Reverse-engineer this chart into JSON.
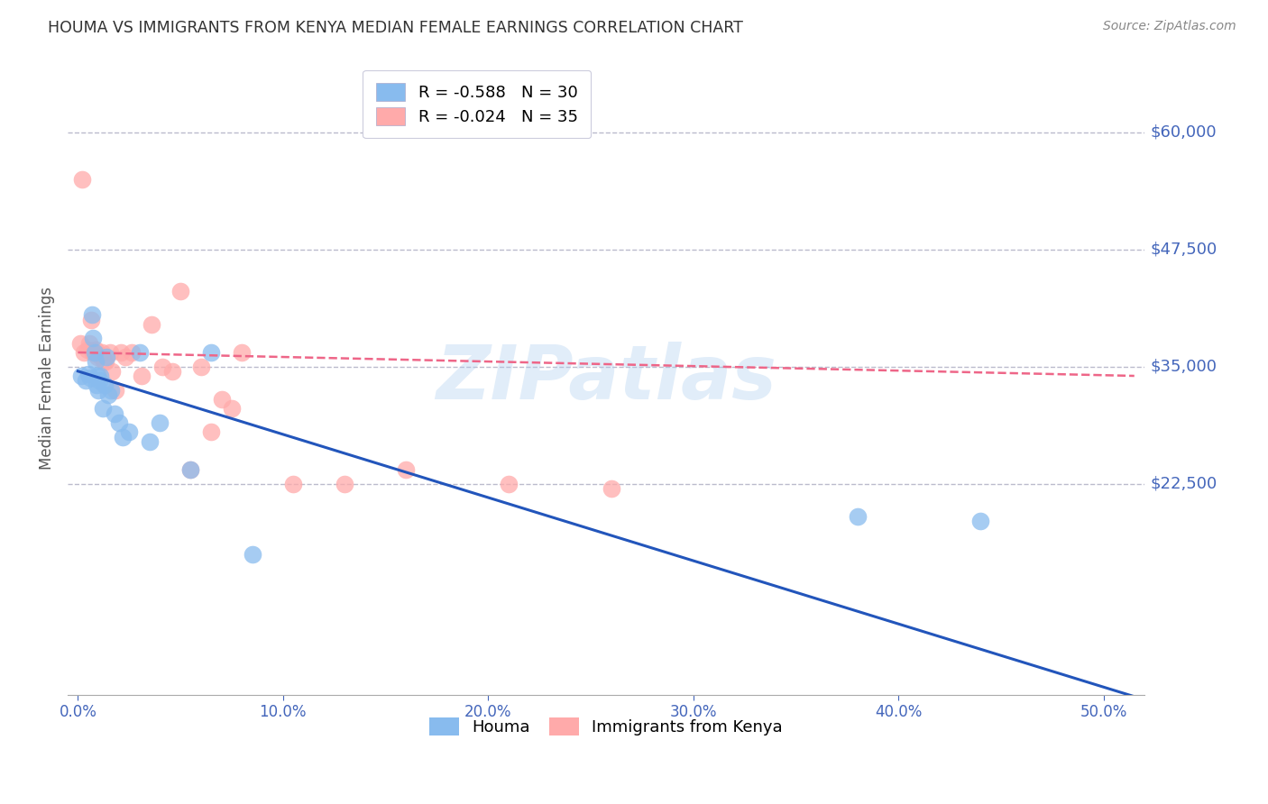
{
  "title": "HOUMA VS IMMIGRANTS FROM KENYA MEDIAN FEMALE EARNINGS CORRELATION CHART",
  "source": "Source: ZipAtlas.com",
  "xlabel_vals": [
    0.0,
    10.0,
    20.0,
    30.0,
    40.0,
    50.0
  ],
  "ylabel": "Median Female Earnings",
  "ytick_labels_right": [
    22500,
    35000,
    47500,
    60000
  ],
  "ylim": [
    0,
    67500
  ],
  "xlim": [
    -0.5,
    52.0
  ],
  "houma_color": "#88BBEE",
  "kenya_color": "#FFAAAA",
  "houma_line_color": "#2255BB",
  "kenya_line_color": "#EE6688",
  "legend_houma_label": "R = -0.588   N = 30",
  "legend_kenya_label": "R = -0.024   N = 35",
  "watermark": "ZIPatlas",
  "background_color": "#FFFFFF",
  "grid_color": "#BBBBCC",
  "axis_color": "#4466BB",
  "title_color": "#333333",
  "houma_x": [
    0.15,
    0.4,
    0.5,
    0.6,
    0.7,
    0.75,
    0.8,
    0.85,
    0.9,
    0.95,
    1.0,
    1.05,
    1.1,
    1.2,
    1.3,
    1.4,
    1.5,
    1.6,
    1.8,
    2.0,
    2.2,
    2.5,
    3.0,
    3.5,
    4.0,
    5.5,
    6.5,
    8.5,
    38.0,
    44.0
  ],
  "houma_y": [
    34000,
    33500,
    34200,
    33800,
    40500,
    38000,
    36500,
    35500,
    33000,
    34000,
    32500,
    33500,
    34000,
    30500,
    33000,
    36000,
    32000,
    32500,
    30000,
    29000,
    27500,
    28000,
    36500,
    27000,
    29000,
    24000,
    36500,
    15000,
    19000,
    18500
  ],
  "kenya_x": [
    0.1,
    0.2,
    0.3,
    0.45,
    0.55,
    0.65,
    0.75,
    0.85,
    0.95,
    1.05,
    1.15,
    1.25,
    1.35,
    1.55,
    1.65,
    1.85,
    2.1,
    2.3,
    2.6,
    3.1,
    3.6,
    4.1,
    4.6,
    5.0,
    5.5,
    6.0,
    6.5,
    7.0,
    7.5,
    8.0,
    10.5,
    13.0,
    16.0,
    21.0,
    26.0
  ],
  "kenya_y": [
    37500,
    55000,
    36500,
    36800,
    37500,
    40000,
    36500,
    36800,
    36000,
    36200,
    36500,
    35500,
    35500,
    36500,
    34500,
    32500,
    36500,
    36000,
    36500,
    34000,
    39500,
    35000,
    34500,
    43000,
    24000,
    35000,
    28000,
    31500,
    30500,
    36500,
    22500,
    22500,
    24000,
    22500,
    22000
  ],
  "houma_line_x0": 0.0,
  "houma_line_x1": 51.5,
  "houma_line_y0": 34500,
  "houma_line_y1": -200,
  "kenya_line_x0": 0.0,
  "kenya_line_x1": 51.5,
  "kenya_line_y0": 36500,
  "kenya_line_y1": 34000
}
